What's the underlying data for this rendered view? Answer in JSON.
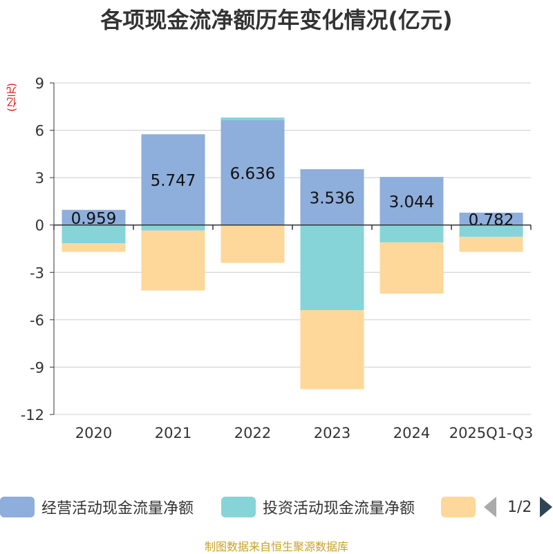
{
  "title": "各项现金流净额历年变化情况(亿元)",
  "unit_label": "(亿元)",
  "source": "制图数据来自恒生聚源数据库",
  "legend": {
    "page": "1/2",
    "prev_icon": "chevron-left-icon",
    "next_icon": "chevron-right-icon"
  },
  "colors": {
    "operating": "#8eaedb",
    "investing": "#86d4d7",
    "financing": "#fdd89a",
    "grid": "#cccccc",
    "axis": "#333333",
    "text": "#333333"
  },
  "chart_data": {
    "type": "bar",
    "stacked": true,
    "title": "各项现金流净额历年变化情况(亿元)",
    "ylabel": "(亿元)",
    "ylim": [
      -12,
      9
    ],
    "yticks": [
      9,
      6,
      3,
      0,
      -3,
      -6,
      -9,
      -12
    ],
    "categories": [
      "2020",
      "2021",
      "2022",
      "2023",
      "2024",
      "2025Q1-Q3"
    ],
    "series": [
      {
        "name": "经营活动现金流量净额",
        "values": [
          0.959,
          5.747,
          6.636,
          3.536,
          3.044,
          0.782
        ],
        "labels": [
          "0.959",
          "5.747",
          "6.636",
          "3.536",
          "3.044",
          "0.782"
        ]
      },
      {
        "name": "投资活动现金流量净额",
        "values": [
          -1.15,
          -0.35,
          0.17,
          -5.4,
          -1.1,
          -0.75
        ]
      },
      {
        "name": "",
        "values": [
          -0.55,
          -3.8,
          -2.4,
          -5.0,
          -3.25,
          -0.95
        ]
      }
    ]
  }
}
